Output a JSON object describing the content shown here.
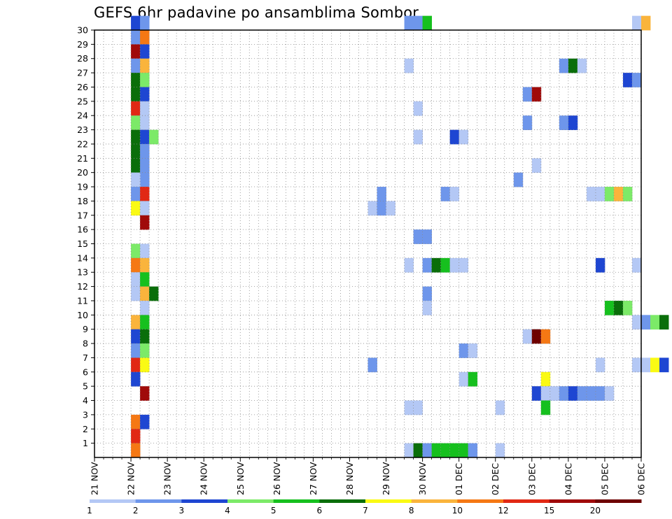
{
  "chart_data": {
    "type": "heatmap",
    "title": "GEFS 6hr padavine po ansamblima Sombor",
    "y_ticks": [
      "1",
      "2",
      "3",
      "4",
      "5",
      "6",
      "7",
      "8",
      "9",
      "10",
      "11",
      "12",
      "13",
      "14",
      "15",
      "16",
      "17",
      "18",
      "19",
      "20",
      "21",
      "22",
      "23",
      "24",
      "25",
      "26",
      "27",
      "28",
      "29",
      "30"
    ],
    "x_ticks": [
      "21 NOV",
      "22 NOV",
      "23 NOV",
      "24 NOV",
      "25 NOV",
      "26 NOV",
      "27 NOV",
      "28 NOV",
      "29 NOV",
      "30 NOV",
      "01 DEC",
      "02 DEC",
      "03 DEC",
      "04 DEC",
      "05 DEC",
      "06 DEC"
    ],
    "x_range_days": [
      0,
      15
    ],
    "y_range": [
      0,
      30
    ],
    "step_hours": 6,
    "legend": {
      "thresholds": [
        "1",
        "2",
        "3",
        "4",
        "5",
        "6",
        "7",
        "8",
        "10",
        "12",
        "15",
        "20"
      ],
      "colors": [
        "#b4c8f5",
        "#6e96eb",
        "#1e46d2",
        "#7cea68",
        "#16c01e",
        "#0a6e0a",
        "#fafa14",
        "#fab43c",
        "#f57814",
        "#e12814",
        "#a00a0a",
        "#6e0000"
      ]
    },
    "cells": [
      {
        "d": 1,
        "s": 0,
        "m": 30,
        "c": 3
      },
      {
        "d": 1,
        "s": 1,
        "m": 30,
        "c": 2
      },
      {
        "d": 8,
        "s": 2,
        "m": 30,
        "c": 2
      },
      {
        "d": 8,
        "s": 3,
        "m": 30,
        "c": 2
      },
      {
        "d": 8,
        "s": 4,
        "m": 30,
        "c": 5
      },
      {
        "d": 14,
        "s": 3,
        "m": 30,
        "c": 1
      },
      {
        "d": 14,
        "s": 4,
        "m": 30,
        "c": 8
      },
      {
        "d": 1,
        "s": 0,
        "m": 29,
        "c": 2
      },
      {
        "d": 1,
        "s": 1,
        "m": 29,
        "c": 9
      },
      {
        "d": 1,
        "s": 0,
        "m": 28,
        "c": 11
      },
      {
        "d": 1,
        "s": 1,
        "m": 28,
        "c": 3
      },
      {
        "d": 1,
        "s": 0,
        "m": 27,
        "c": 2
      },
      {
        "d": 1,
        "s": 1,
        "m": 27,
        "c": 8
      },
      {
        "d": 8,
        "s": 2,
        "m": 27,
        "c": 1
      },
      {
        "d": 12,
        "s": 3,
        "m": 27,
        "c": 2
      },
      {
        "d": 13,
        "s": 0,
        "m": 27,
        "c": 6
      },
      {
        "d": 13,
        "s": 1,
        "m": 27,
        "c": 1
      },
      {
        "d": 1,
        "s": 0,
        "m": 26,
        "c": 6
      },
      {
        "d": 1,
        "s": 1,
        "m": 26,
        "c": 4
      },
      {
        "d": 14,
        "s": 2,
        "m": 26,
        "c": 3
      },
      {
        "d": 14,
        "s": 3,
        "m": 26,
        "c": 2
      },
      {
        "d": 1,
        "s": 0,
        "m": 25,
        "c": 6
      },
      {
        "d": 1,
        "s": 1,
        "m": 25,
        "c": 3
      },
      {
        "d": 11,
        "s": 3,
        "m": 25,
        "c": 2
      },
      {
        "d": 12,
        "s": 0,
        "m": 25,
        "c": 11
      },
      {
        "d": 1,
        "s": 0,
        "m": 24,
        "c": 10
      },
      {
        "d": 1,
        "s": 1,
        "m": 24,
        "c": 1
      },
      {
        "d": 8,
        "s": 3,
        "m": 24,
        "c": 1
      },
      {
        "d": 1,
        "s": 0,
        "m": 23,
        "c": 4
      },
      {
        "d": 1,
        "s": 1,
        "m": 23,
        "c": 1
      },
      {
        "d": 11,
        "s": 3,
        "m": 23,
        "c": 2
      },
      {
        "d": 12,
        "s": 3,
        "m": 23,
        "c": 2
      },
      {
        "d": 13,
        "s": 0,
        "m": 23,
        "c": 3
      },
      {
        "d": 1,
        "s": 0,
        "m": 22,
        "c": 6
      },
      {
        "d": 1,
        "s": 1,
        "m": 22,
        "c": 3
      },
      {
        "d": 1,
        "s": 2,
        "m": 22,
        "c": 4
      },
      {
        "d": 8,
        "s": 3,
        "m": 22,
        "c": 1
      },
      {
        "d": 9,
        "s": 3,
        "m": 22,
        "c": 3
      },
      {
        "d": 10,
        "s": 0,
        "m": 22,
        "c": 1
      },
      {
        "d": 1,
        "s": 0,
        "m": 21,
        "c": 6
      },
      {
        "d": 1,
        "s": 1,
        "m": 21,
        "c": 2
      },
      {
        "d": 1,
        "s": 0,
        "m": 20,
        "c": 6
      },
      {
        "d": 1,
        "s": 1,
        "m": 20,
        "c": 2
      },
      {
        "d": 12,
        "s": 0,
        "m": 20,
        "c": 1
      },
      {
        "d": 1,
        "s": 1,
        "m": 19,
        "c": 2
      },
      {
        "d": 1,
        "s": 0,
        "m": 19,
        "c": 1
      },
      {
        "d": 11,
        "s": 2,
        "m": 19,
        "c": 2
      },
      {
        "d": 1,
        "s": 0,
        "m": 18,
        "c": 2
      },
      {
        "d": 1,
        "s": 1,
        "m": 18,
        "c": 10
      },
      {
        "d": 7,
        "s": 3,
        "m": 18,
        "c": 2
      },
      {
        "d": 9,
        "s": 2,
        "m": 18,
        "c": 2
      },
      {
        "d": 9,
        "s": 3,
        "m": 18,
        "c": 1
      },
      {
        "d": 13,
        "s": 2,
        "m": 18,
        "c": 1
      },
      {
        "d": 13,
        "s": 3,
        "m": 18,
        "c": 1
      },
      {
        "d": 14,
        "s": 0,
        "m": 18,
        "c": 4
      },
      {
        "d": 14,
        "s": 1,
        "m": 18,
        "c": 8
      },
      {
        "d": 14,
        "s": 2,
        "m": 18,
        "c": 4
      },
      {
        "d": 1,
        "s": 0,
        "m": 17,
        "c": 7
      },
      {
        "d": 1,
        "s": 1,
        "m": 17,
        "c": 1
      },
      {
        "d": 7,
        "s": 2,
        "m": 17,
        "c": 1
      },
      {
        "d": 7,
        "s": 3,
        "m": 17,
        "c": 2
      },
      {
        "d": 8,
        "s": 0,
        "m": 17,
        "c": 1
      },
      {
        "d": 1,
        "s": 1,
        "m": 16,
        "c": 11
      },
      {
        "d": 8,
        "s": 3,
        "m": 15,
        "c": 2
      },
      {
        "d": 9,
        "s": 0,
        "m": 15,
        "c": 2
      },
      {
        "d": 1,
        "s": 0,
        "m": 14,
        "c": 4
      },
      {
        "d": 1,
        "s": 1,
        "m": 14,
        "c": 1
      },
      {
        "d": 1,
        "s": 0,
        "m": 13,
        "c": 9
      },
      {
        "d": 1,
        "s": 1,
        "m": 13,
        "c": 8
      },
      {
        "d": 8,
        "s": 2,
        "m": 13,
        "c": 1
      },
      {
        "d": 9,
        "s": 0,
        "m": 13,
        "c": 2
      },
      {
        "d": 9,
        "s": 1,
        "m": 13,
        "c": 6
      },
      {
        "d": 9,
        "s": 2,
        "m": 13,
        "c": 5
      },
      {
        "d": 9,
        "s": 3,
        "m": 13,
        "c": 1
      },
      {
        "d": 10,
        "s": 0,
        "m": 13,
        "c": 1
      },
      {
        "d": 13,
        "s": 3,
        "m": 13,
        "c": 3
      },
      {
        "d": 14,
        "s": 3,
        "m": 13,
        "c": 1
      },
      {
        "d": 1,
        "s": 0,
        "m": 12,
        "c": 1
      },
      {
        "d": 1,
        "s": 1,
        "m": 12,
        "c": 5
      },
      {
        "d": 1,
        "s": 0,
        "m": 11,
        "c": 1
      },
      {
        "d": 1,
        "s": 1,
        "m": 11,
        "c": 8
      },
      {
        "d": 1,
        "s": 2,
        "m": 11,
        "c": 6
      },
      {
        "d": 9,
        "s": 0,
        "m": 11,
        "c": 2
      },
      {
        "d": 1,
        "s": 1,
        "m": 10,
        "c": 1
      },
      {
        "d": 9,
        "s": 0,
        "m": 10,
        "c": 1
      },
      {
        "d": 14,
        "s": 0,
        "m": 10,
        "c": 5
      },
      {
        "d": 14,
        "s": 1,
        "m": 10,
        "c": 6
      },
      {
        "d": 14,
        "s": 2,
        "m": 10,
        "c": 4
      },
      {
        "d": 1,
        "s": 0,
        "m": 9,
        "c": 8
      },
      {
        "d": 1,
        "s": 1,
        "m": 9,
        "c": 5
      },
      {
        "d": 14,
        "s": 3,
        "m": 9,
        "c": 1
      },
      {
        "d": 15,
        "s": 0,
        "m": 9,
        "c": 2
      },
      {
        "d": 15,
        "s": 1,
        "m": 9,
        "c": 4
      },
      {
        "d": 15,
        "s": 2,
        "m": 9,
        "c": 6
      },
      {
        "d": 1,
        "s": 0,
        "m": 8,
        "c": 3
      },
      {
        "d": 1,
        "s": 1,
        "m": 8,
        "c": 6
      },
      {
        "d": 11,
        "s": 3,
        "m": 8,
        "c": 1
      },
      {
        "d": 12,
        "s": 0,
        "m": 8,
        "c": 12
      },
      {
        "d": 12,
        "s": 1,
        "m": 8,
        "c": 9
      },
      {
        "d": 1,
        "s": 0,
        "m": 7,
        "c": 2
      },
      {
        "d": 1,
        "s": 1,
        "m": 7,
        "c": 4
      },
      {
        "d": 10,
        "s": 0,
        "m": 7,
        "c": 2
      },
      {
        "d": 10,
        "s": 1,
        "m": 7,
        "c": 1
      },
      {
        "d": 1,
        "s": 0,
        "m": 6,
        "c": 10
      },
      {
        "d": 1,
        "s": 1,
        "m": 6,
        "c": 7
      },
      {
        "d": 7,
        "s": 2,
        "m": 6,
        "c": 2
      },
      {
        "d": 13,
        "s": 3,
        "m": 6,
        "c": 1
      },
      {
        "d": 14,
        "s": 3,
        "m": 6,
        "c": 1
      },
      {
        "d": 15,
        "s": 0,
        "m": 6,
        "c": 1
      },
      {
        "d": 15,
        "s": 1,
        "m": 6,
        "c": 7
      },
      {
        "d": 15,
        "s": 2,
        "m": 6,
        "c": 3
      },
      {
        "d": 1,
        "s": 0,
        "m": 5,
        "c": 3
      },
      {
        "d": 10,
        "s": 0,
        "m": 5,
        "c": 1
      },
      {
        "d": 10,
        "s": 1,
        "m": 5,
        "c": 5
      },
      {
        "d": 12,
        "s": 1,
        "m": 5,
        "c": 7
      },
      {
        "d": 1,
        "s": 1,
        "m": 4,
        "c": 11
      },
      {
        "d": 12,
        "s": 0,
        "m": 4,
        "c": 3
      },
      {
        "d": 12,
        "s": 1,
        "m": 4,
        "c": 1
      },
      {
        "d": 12,
        "s": 2,
        "m": 4,
        "c": 1
      },
      {
        "d": 12,
        "s": 3,
        "m": 4,
        "c": 2
      },
      {
        "d": 13,
        "s": 0,
        "m": 4,
        "c": 3
      },
      {
        "d": 13,
        "s": 1,
        "m": 4,
        "c": 2
      },
      {
        "d": 13,
        "s": 2,
        "m": 4,
        "c": 2
      },
      {
        "d": 13,
        "s": 3,
        "m": 4,
        "c": 2
      },
      {
        "d": 14,
        "s": 0,
        "m": 4,
        "c": 1
      },
      {
        "d": 8,
        "s": 2,
        "m": 3,
        "c": 1
      },
      {
        "d": 8,
        "s": 3,
        "m": 3,
        "c": 1
      },
      {
        "d": 11,
        "s": 0,
        "m": 3,
        "c": 1
      },
      {
        "d": 12,
        "s": 1,
        "m": 3,
        "c": 5
      },
      {
        "d": 1,
        "s": 0,
        "m": 2,
        "c": 9
      },
      {
        "d": 1,
        "s": 1,
        "m": 2,
        "c": 3
      },
      {
        "d": 1,
        "s": 0,
        "m": 1,
        "c": 10
      },
      {
        "d": 1,
        "s": 0,
        "m": 0,
        "c": 9
      },
      {
        "d": 8,
        "s": 2,
        "m": 0,
        "c": 1
      },
      {
        "d": 8,
        "s": 3,
        "m": 0,
        "c": 6
      },
      {
        "d": 9,
        "s": 0,
        "m": 0,
        "c": 2
      },
      {
        "d": 9,
        "s": 1,
        "m": 0,
        "c": 5
      },
      {
        "d": 9,
        "s": 2,
        "m": 0,
        "c": 5
      },
      {
        "d": 9,
        "s": 3,
        "m": 0,
        "c": 5
      },
      {
        "d": 10,
        "s": 0,
        "m": 0,
        "c": 5
      },
      {
        "d": 10,
        "s": 1,
        "m": 0,
        "c": 2
      },
      {
        "d": 11,
        "s": 0,
        "m": 0,
        "c": 1
      }
    ]
  }
}
